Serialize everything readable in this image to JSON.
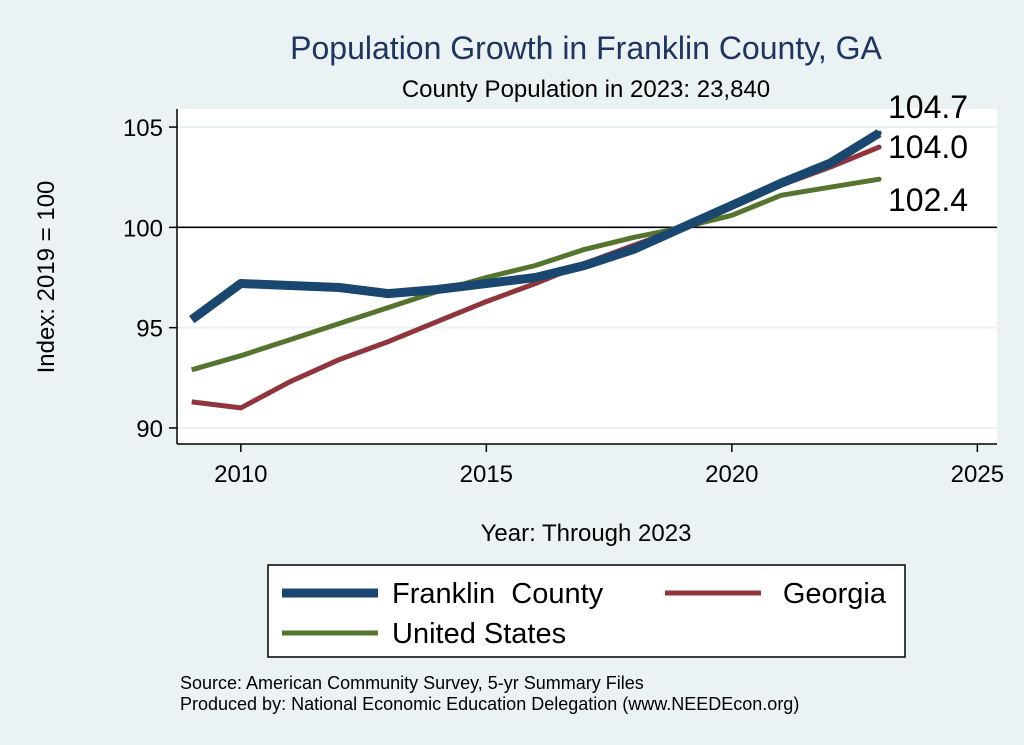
{
  "chart_data": {
    "type": "line",
    "title": "Population Growth in Franklin County, GA",
    "subtitle": "County Population in 2023: 23,840",
    "xlabel": "Year: Through 2023",
    "ylabel": "Index: 2019 = 100",
    "xlim": [
      2008.7,
      2025.4
    ],
    "ylim": [
      89.2,
      105.9
    ],
    "xticks": [
      2010,
      2015,
      2020,
      2025
    ],
    "yticks": [
      90,
      95,
      100,
      105
    ],
    "reference_line": 100,
    "grid": true,
    "legend_position": "bottom",
    "x": [
      2009,
      2010,
      2011,
      2012,
      2013,
      2014,
      2015,
      2016,
      2017,
      2018,
      2019,
      2020,
      2021,
      2022,
      2023
    ],
    "series": [
      {
        "name": "Franklin  County",
        "color": "#1a476f",
        "values": [
          95.4,
          97.2,
          97.1,
          97.0,
          96.7,
          96.9,
          97.2,
          97.5,
          98.1,
          98.9,
          100.0,
          101.1,
          102.2,
          103.2,
          104.7
        ],
        "end_label": "104.7"
      },
      {
        "name": "Georgia",
        "color": "#90353b",
        "values": [
          91.3,
          91.0,
          92.3,
          93.4,
          94.3,
          95.3,
          96.3,
          97.2,
          98.2,
          99.1,
          100.0,
          101.0,
          102.1,
          103.0,
          104.0
        ],
        "end_label": "104.0"
      },
      {
        "name": "United States",
        "color": "#55752f",
        "values": [
          92.9,
          93.6,
          94.4,
          95.2,
          96.0,
          96.8,
          97.5,
          98.1,
          98.9,
          99.5,
          100.0,
          100.6,
          101.6,
          102.0,
          102.4
        ],
        "end_label": "102.4"
      }
    ]
  },
  "source": {
    "line1": "Source: American Community Survey, 5-yr Summary Files",
    "line2": "Produced by: National Economic Education Delegation (www.NEEDEcon.org)"
  }
}
